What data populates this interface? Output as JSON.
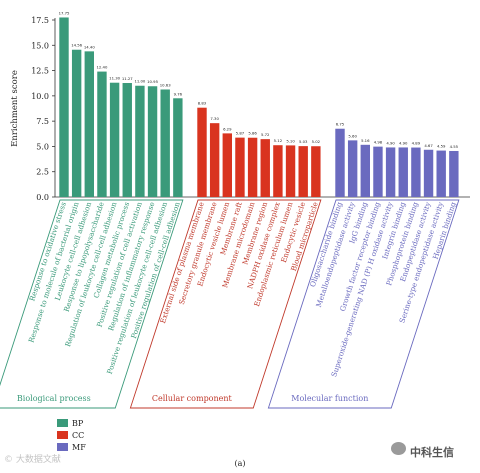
{
  "chart_data": {
    "type": "bar",
    "ylabel": "Enrichment score",
    "ylim": [
      0,
      17.5
    ],
    "yticks": [
      "0.0",
      "2.5",
      "5.0",
      "7.5",
      "10.0",
      "12.5",
      "15.0",
      "17.5"
    ],
    "panel_label": "(a)",
    "groups": [
      {
        "name": "Biological process",
        "legend_code": "BP",
        "color": "#3a9a7a",
        "border_color": "#3a9a7a",
        "categories": [
          "Response to oxidative stress",
          "Response to molecule of bacterial origin",
          "Leukocyte cell-cell adhesion",
          "Response to lipopolysaccharide",
          "Regulation of leukocyte cell-cell adhesion",
          "Collagen metabolic process",
          "Positive regulation of cell activation",
          "Regulation of inflammatory response",
          "Positive regulation of leukocyte cell-cell adhesion",
          "Positive regulation of cell-cell adhesion"
        ],
        "values": [
          17.75,
          14.56,
          14.4,
          12.4,
          11.3,
          11.27,
          11.0,
          10.95,
          10.63,
          9.76
        ],
        "labels": [
          "17.75",
          "14.56",
          "14.40",
          "12.40",
          "11.30",
          "11.27",
          "11.00",
          "10.95",
          "10.63",
          "9.76"
        ]
      },
      {
        "name": "Cellular component",
        "legend_code": "CC",
        "color": "#d9341f",
        "border_color": "#c0392b",
        "categories": [
          "External side of plasma membrane",
          "Secretory granule membrane",
          "Endocytic vesicle lumen",
          "Membrane raft",
          "Membrane microdomain",
          "Membrane region",
          "NADPH oxidase complex",
          "Endoplasmic reticulum lumen",
          "Endocytic vesicle",
          "Blood microparticle"
        ],
        "values": [
          8.83,
          7.3,
          6.29,
          5.87,
          5.86,
          5.72,
          5.12,
          5.1,
          5.03,
          5.02
        ],
        "labels": [
          "8.83",
          "7.30",
          "6.29",
          "5.87",
          "5.86",
          "5.72",
          "5.12",
          "5.10",
          "5.03",
          "5.02"
        ]
      },
      {
        "name": "Molecular function",
        "legend_code": "MF",
        "color": "#6a6abf",
        "border_color": "#6a6abf",
        "categories": [
          "Oligosaccharide binding",
          "Metalloendopeptidase activity",
          "IgG binding",
          "Growth factor receptor binding",
          "Superoxide-generating NAD (P) H oxidase activity",
          "Integrin binding",
          "Phosphoprotein binding",
          "Endopeptidase activity",
          "Serine-type endopeptidase activity",
          "Heparin binding"
        ],
        "values": [
          6.75,
          5.6,
          5.16,
          4.98,
          4.9,
          4.9,
          4.89,
          4.67,
          4.59,
          4.55
        ],
        "labels": [
          "6.75",
          "5.60",
          "5.16",
          "4.98",
          "4.90",
          "4.90",
          "4.89",
          "4.67",
          "4.59",
          "4.55"
        ]
      }
    ]
  },
  "watermark_left": "© 大数据文献",
  "watermark_right": "中科生信"
}
